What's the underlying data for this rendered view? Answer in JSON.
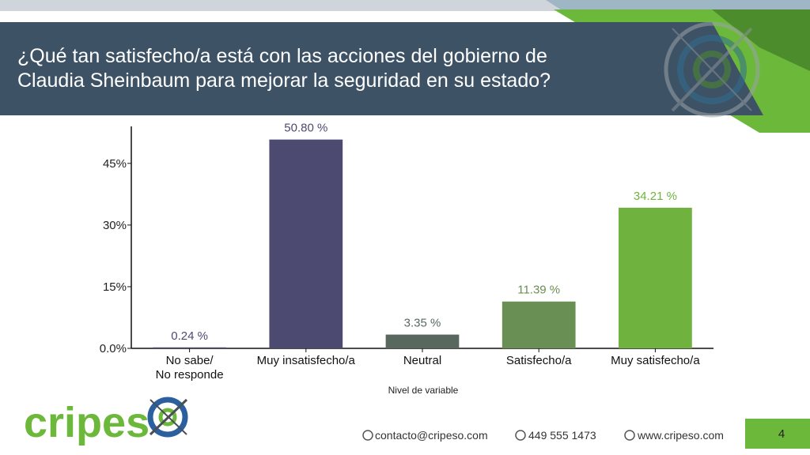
{
  "header": {
    "title_lines": [
      "¿Qué tan satisfecho/a está con las acciones del gobierno de",
      "Claudia Sheinbaum para mejorar la seguridad en su estado?"
    ]
  },
  "chart_data": {
    "type": "bar",
    "title": "",
    "xlabel": "Nivel de variable",
    "ylabel": "",
    "ylim": [
      0,
      54
    ],
    "yticks": [
      0,
      15,
      30,
      45
    ],
    "ytick_labels": [
      "0.0%",
      "15%",
      "30%",
      "45%"
    ],
    "grid": false,
    "categories": [
      [
        "No sabe/",
        "No responde"
      ],
      [
        "Muy insatisfecho/a"
      ],
      [
        "Neutral"
      ],
      [
        "Satisfecho/a"
      ],
      [
        "Muy satisfecho/a"
      ]
    ],
    "values": [
      0.24,
      50.8,
      3.35,
      11.39,
      34.21
    ],
    "data_labels": [
      "0.24 %",
      "50.80 %",
      "3.35 %",
      "11.39 %",
      "34.21 %"
    ],
    "bar_colors": [
      "#4d4a72",
      "#4d4a72",
      "#59685f",
      "#6a8f54",
      "#6fb33e"
    ],
    "label_colors": [
      "#4d4a72",
      "#4d4a72",
      "#59685f",
      "#6a8f54",
      "#6fb33e"
    ]
  },
  "footer": {
    "brand": "cripes",
    "email": "contacto@cripeso.com",
    "phone": "449 555 1473",
    "website": "www.cripeso.com",
    "page_number": "4"
  },
  "colors": {
    "header_bg": "#3e5266",
    "accent_green": "#6cb83a",
    "brand_green": "#6cb83a",
    "brand_blue": "#2b5f9e"
  }
}
